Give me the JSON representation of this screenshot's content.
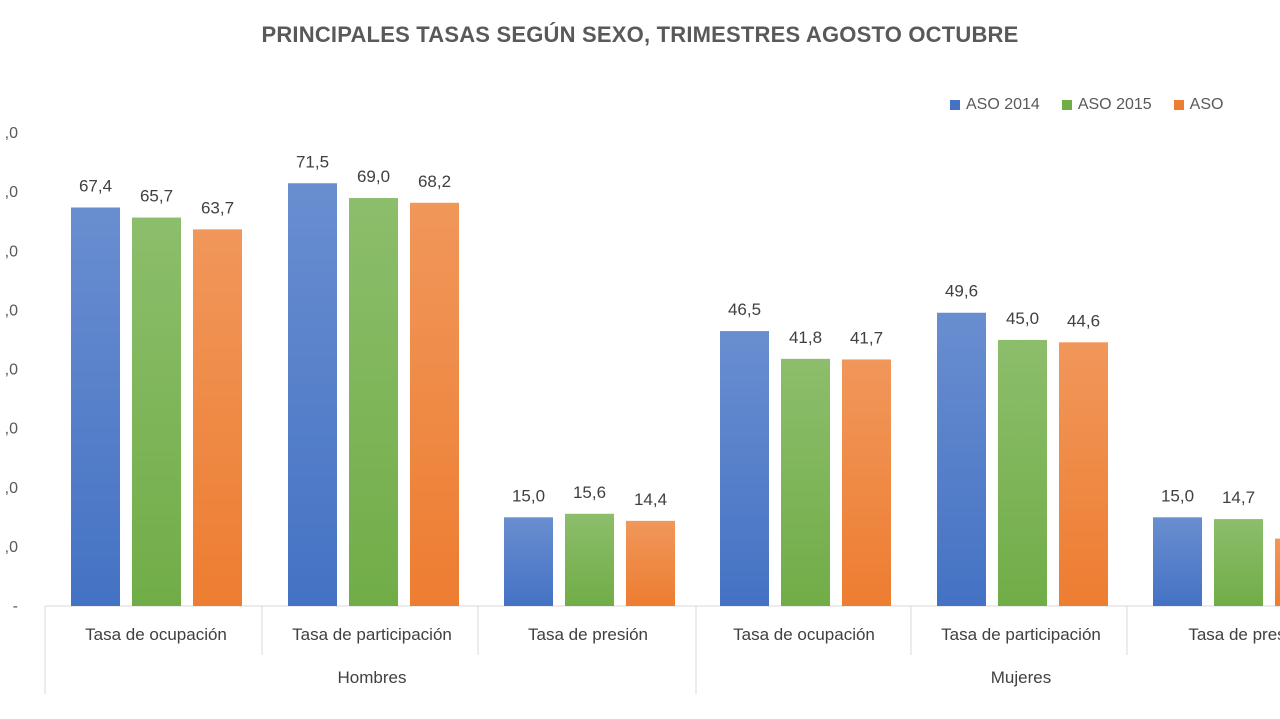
{
  "chart_data": {
    "type": "bar",
    "title": "PRINCIPALES TASAS SEGÚN SEXO, TRIMESTRES AGOSTO OCTUBRE",
    "groups": [
      {
        "label": "Hombres",
        "categories": [
          "Tasa de ocupación",
          "Tasa de participación",
          "Tasa de presión"
        ]
      },
      {
        "label": "Mujeres",
        "categories": [
          "Tasa de ocupación",
          "Tasa de participación",
          "Tasa de pres"
        ]
      }
    ],
    "series": [
      {
        "name": "ASO 2014",
        "color": "#4472C4",
        "values": [
          67.4,
          71.5,
          15.0,
          46.5,
          49.6,
          15.0
        ],
        "labels": [
          "67,4",
          "71,5",
          "15,0",
          "46,5",
          "49,6",
          "15,0"
        ]
      },
      {
        "name": "ASO 2015",
        "color": "#70AD47",
        "values": [
          65.7,
          69.0,
          15.6,
          41.8,
          45.0,
          14.7
        ],
        "labels": [
          "65,7",
          "69,0",
          "15,6",
          "41,8",
          "45,0",
          "14,7"
        ]
      },
      {
        "name": "ASO",
        "color": "#ED7D31",
        "values": [
          63.7,
          68.2,
          14.4,
          41.7,
          44.6,
          11.4
        ],
        "labels": [
          "63,7",
          "68,2",
          "14,4",
          "41,7",
          "44,6",
          ""
        ]
      }
    ],
    "yticks": [
      "-",
      ",0",
      ",0",
      ",0",
      ",0",
      ",0",
      ",0",
      ",0",
      ",0"
    ],
    "ylim": [
      0,
      80
    ],
    "legend_position": "top-right",
    "grid": false
  }
}
